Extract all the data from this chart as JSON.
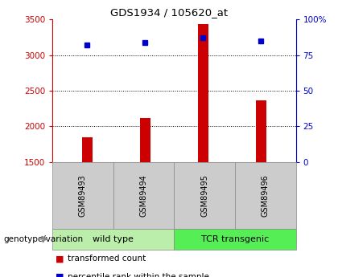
{
  "title": "GDS1934 / 105620_at",
  "samples": [
    "GSM89493",
    "GSM89494",
    "GSM89495",
    "GSM89496"
  ],
  "transformed_counts": [
    1850,
    2120,
    3430,
    2370
  ],
  "percentile_ranks": [
    82,
    84,
    87,
    85
  ],
  "y_min": 1500,
  "y_max": 3500,
  "y_ticks": [
    1500,
    2000,
    2500,
    3000,
    3500
  ],
  "y2_ticks": [
    0,
    25,
    50,
    75,
    100
  ],
  "y2_tick_labels": [
    "0",
    "25",
    "50",
    "75",
    "100%"
  ],
  "groups": [
    {
      "label": "wild type",
      "samples_idx": [
        0,
        1
      ],
      "color": "#bbeeaa"
    },
    {
      "label": "TCR transgenic",
      "samples_idx": [
        2,
        3
      ],
      "color": "#55ee55"
    }
  ],
  "bar_color": "#cc0000",
  "dot_color": "#0000cc",
  "axis_left_color": "#cc0000",
  "axis_right_color": "#0000cc",
  "grid_color": "#000000",
  "plot_bg_color": "#ffffff",
  "label_box_color": "#cccccc",
  "legend_red_label": "transformed count",
  "legend_blue_label": "percentile rank within the sample",
  "genotype_label": "genotype/variation"
}
